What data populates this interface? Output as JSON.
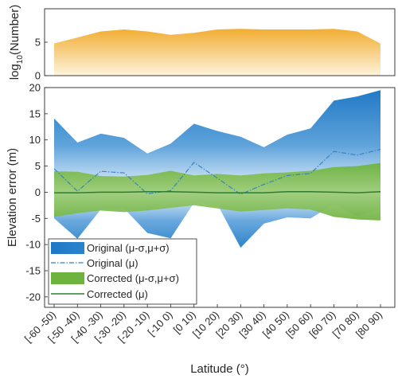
{
  "chart_data": [
    {
      "type": "area",
      "ylabel_base": "log",
      "ylabel_sub": "10",
      "ylabel_rest": "(Number)",
      "ylim": [
        0,
        10
      ],
      "yticks": [
        0,
        5
      ],
      "colors": {
        "top": "#f2ad32",
        "bottom": "#fdf3dc"
      },
      "values": [
        4.8,
        5.7,
        6.6,
        6.9,
        6.6,
        6.1,
        6.4,
        6.9,
        7.0,
        6.9,
        6.9,
        6.9,
        7.0,
        6.6,
        4.8
      ]
    },
    {
      "type": "line",
      "xlabel": "Latitude (°)",
      "ylabel": "Elevation error (m)",
      "ylim": [
        -22,
        20
      ],
      "yticks": [
        -20,
        -15,
        -10,
        -5,
        0,
        5,
        10,
        15,
        20
      ],
      "categories": [
        "[-60 -50)",
        "[-50 -40)",
        "[-40 -30)",
        "[-30 -20)",
        "[-20 -10)",
        "[-10 0)",
        "[0 10)",
        "[10 20)",
        "[20 30)",
        "[30 40)",
        "[40 50)",
        "[50 60)",
        "[60 70)",
        "[70 80)",
        "[80 90)"
      ],
      "grid": false,
      "legend_position": "bottom-left",
      "series": [
        {
          "name": "Original (μ-σ,μ+σ)",
          "kind": "band",
          "color": "#1f77c4",
          "upper": [
            14.1,
            9.5,
            11.2,
            10.4,
            7.4,
            9.3,
            13.1,
            11.7,
            10.6,
            8.6,
            11.0,
            12.2,
            17.5,
            18.3,
            19.5
          ],
          "lower": [
            -5.0,
            -8.9,
            -3.3,
            -3.1,
            -7.8,
            -8.8,
            -2.0,
            -2.3,
            -10.6,
            -6.0,
            -4.8,
            -5.0,
            -2.3,
            -4.6,
            -3.2
          ]
        },
        {
          "name": "Original (μ)",
          "kind": "dashdot",
          "color": "#2f7fc0",
          "values": [
            4.5,
            0.2,
            4.0,
            3.7,
            -0.3,
            0.3,
            5.7,
            2.7,
            -0.4,
            1.5,
            3.2,
            3.6,
            7.8,
            7.1,
            8.2
          ]
        },
        {
          "name": "Corrected (μ-σ,μ+σ)",
          "kind": "band",
          "color": "#6fb33f",
          "upper": [
            4.0,
            3.9,
            3.1,
            3.0,
            3.3,
            4.1,
            3.2,
            3.5,
            3.2,
            3.6,
            3.8,
            4.1,
            4.8,
            5.0,
            5.6
          ],
          "lower": [
            -4.7,
            -4.0,
            -3.5,
            -3.8,
            -3.5,
            -3.0,
            -2.5,
            -3.1,
            -3.7,
            -3.4,
            -3.1,
            -3.3,
            -4.7,
            -5.2,
            -5.4
          ]
        },
        {
          "name": "Corrected (μ)",
          "kind": "solid",
          "color": "#2e7d32",
          "values": [
            -0.1,
            -0.1,
            0.0,
            0.0,
            0.1,
            0.1,
            0.0,
            -0.1,
            -0.1,
            -0.1,
            0.1,
            0.1,
            0.0,
            -0.1,
            0.1
          ]
        }
      ]
    }
  ],
  "legend": {
    "items": [
      {
        "kind": "band-blue",
        "text": "Original (μ-σ,μ+σ)"
      },
      {
        "kind": "dashdot",
        "text": "Original (μ)"
      },
      {
        "kind": "band-green",
        "text": "Corrected (μ-σ,μ+σ)"
      },
      {
        "kind": "solid",
        "text": "Corrected (μ)"
      }
    ]
  }
}
